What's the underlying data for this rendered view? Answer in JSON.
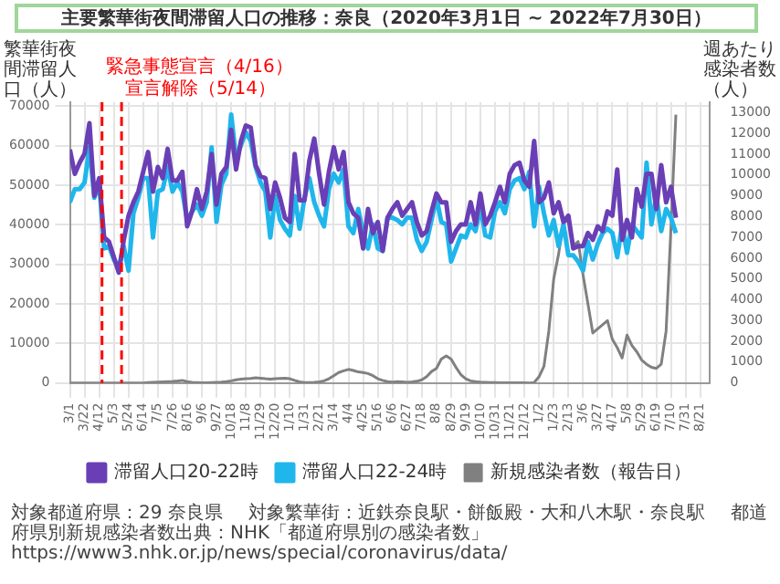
{
  "chart_data": {
    "type": "line",
    "title": "主要繁華街夜間滞留人口の推移：奈良（2020年3月1日 ~ 2022年7月30日）",
    "ylabel": "繁華街夜間滞留人口（人）",
    "y2label": "週あたり感染者数（人）",
    "x": [
      "2020-03-01",
      "2020-03-08",
      "2020-03-15",
      "2020-03-22",
      "2020-03-29",
      "2020-04-05",
      "2020-04-12",
      "2020-04-19",
      "2020-04-26",
      "2020-05-03",
      "2020-05-10",
      "2020-05-17",
      "2020-05-24",
      "2020-05-31",
      "2020-06-07",
      "2020-06-14",
      "2020-06-21",
      "2020-06-28",
      "2020-07-05",
      "2020-07-12",
      "2020-07-19",
      "2020-07-26",
      "2020-08-02",
      "2020-08-09",
      "2020-08-16",
      "2020-08-23",
      "2020-08-30",
      "2020-09-06",
      "2020-09-13",
      "2020-09-20",
      "2020-09-27",
      "2020-10-04",
      "2020-10-11",
      "2020-10-18",
      "2020-10-25",
      "2020-11-01",
      "2020-11-08",
      "2020-11-15",
      "2020-11-22",
      "2020-11-29",
      "2020-12-06",
      "2020-12-13",
      "2020-12-20",
      "2020-12-27",
      "2021-01-03",
      "2021-01-10",
      "2021-01-17",
      "2021-01-24",
      "2021-01-31",
      "2021-02-07",
      "2021-02-14",
      "2021-02-21",
      "2021-02-28",
      "2021-03-07",
      "2021-03-14",
      "2021-03-21",
      "2021-03-28",
      "2021-04-04",
      "2021-04-11",
      "2021-04-18",
      "2021-04-25",
      "2021-05-02",
      "2021-05-09",
      "2021-05-16",
      "2021-05-23",
      "2021-05-30",
      "2021-06-06",
      "2021-06-13",
      "2021-06-20",
      "2021-06-27",
      "2021-07-04",
      "2021-07-11",
      "2021-07-18",
      "2021-07-25",
      "2021-08-01",
      "2021-08-08",
      "2021-08-15",
      "2021-08-22",
      "2021-08-29",
      "2021-09-05",
      "2021-09-12",
      "2021-09-19",
      "2021-09-26",
      "2021-10-03",
      "2021-10-10",
      "2021-10-17",
      "2021-10-24",
      "2021-10-31",
      "2021-11-07",
      "2021-11-14",
      "2021-11-21",
      "2021-11-28",
      "2021-12-05",
      "2021-12-12",
      "2021-12-19",
      "2021-12-26",
      "2022-01-02",
      "2022-01-09",
      "2022-01-16",
      "2022-01-23",
      "2022-01-30",
      "2022-02-06",
      "2022-02-13",
      "2022-02-20",
      "2022-02-27",
      "2022-03-06",
      "2022-03-13",
      "2022-03-20",
      "2022-03-27",
      "2022-04-03",
      "2022-04-10",
      "2022-04-17",
      "2022-04-24",
      "2022-05-01",
      "2022-05-08",
      "2022-05-15",
      "2022-05-22",
      "2022-05-29",
      "2022-06-05",
      "2022-06-12",
      "2022-06-19",
      "2022-06-26",
      "2022-07-03",
      "2022-07-10",
      "2022-07-17"
    ],
    "series": [
      {
        "name": "滞留人口20-22時",
        "color": "#6a3fb5",
        "values": [
          59000,
          52900,
          55700,
          58000,
          65700,
          47300,
          51800,
          36800,
          35700,
          31800,
          27900,
          36000,
          42300,
          45700,
          48400,
          53400,
          58400,
          48400,
          54600,
          51800,
          59200,
          51200,
          51200,
          53400,
          39600,
          43400,
          49000,
          44000,
          48400,
          57900,
          45100,
          52900,
          54600,
          64000,
          54000,
          61200,
          65100,
          64600,
          55100,
          52300,
          51800,
          44000,
          50700,
          46800,
          41800,
          40700,
          57900,
          46200,
          46200,
          56200,
          61800,
          52900,
          45100,
          53400,
          59600,
          54000,
          58400,
          45700,
          42900,
          41800,
          34000,
          44000,
          37900,
          40700,
          33400,
          41800,
          44000,
          45700,
          42300,
          44000,
          45700,
          40700,
          37300,
          38400,
          43400,
          47900,
          45700,
          45700,
          35700,
          38400,
          40100,
          40100,
          45700,
          40100,
          47900,
          40100,
          42300,
          45700,
          49600,
          45700,
          52900,
          55100,
          55700,
          51200,
          49600,
          61200,
          45700,
          46800,
          50700,
          42900,
          45700,
          40700,
          42300,
          34000,
          34600,
          34600,
          37900,
          36200,
          39600,
          38400,
          43400,
          42300,
          54000,
          36200,
          41200,
          36800,
          49000,
          44600,
          52900,
          52900,
          44000,
          55100,
          45700,
          49600,
          41800
        ]
      },
      {
        "name": "滞留人口22-24時",
        "color": "#1fb6ec",
        "values": [
          45700,
          49000,
          49000,
          50700,
          59600,
          46800,
          50700,
          34000,
          34600,
          31200,
          29000,
          34600,
          28400,
          42900,
          46800,
          51800,
          51800,
          36800,
          48400,
          49000,
          54600,
          48400,
          50700,
          48400,
          41200,
          43400,
          45100,
          42300,
          45700,
          59600,
          40700,
          50100,
          52900,
          67900,
          56800,
          60100,
          63400,
          61200,
          54600,
          50700,
          48400,
          36800,
          47300,
          41200,
          39000,
          37300,
          47300,
          39000,
          46800,
          51800,
          45700,
          42300,
          39600,
          49000,
          52900,
          50700,
          54000,
          39600,
          37900,
          44000,
          37900,
          34000,
          40100,
          34000,
          33400,
          41800,
          41800,
          41200,
          40100,
          41800,
          41800,
          36200,
          33400,
          35700,
          41200,
          46800,
          40700,
          40100,
          30700,
          34000,
          37300,
          36800,
          40100,
          38400,
          44600,
          37300,
          36800,
          43400,
          45700,
          42900,
          49000,
          51200,
          51800,
          49000,
          53400,
          39600,
          49600,
          42900,
          37300,
          41200,
          34600,
          40100,
          32300,
          32300,
          30700,
          28400,
          35700,
          31200,
          35100,
          37900,
          39000,
          37900,
          31800,
          40100,
          32900,
          40100,
          38400,
          36800,
          55700,
          40100,
          47300,
          38400,
          44000,
          41800,
          37900
        ]
      },
      {
        "name": "新規感染者数（報告日）",
        "color": "#808080",
        "axis": "y2",
        "values": [
          0,
          0,
          0,
          0,
          0,
          0,
          0,
          0,
          0,
          0,
          0,
          0,
          0,
          0,
          0,
          0,
          20,
          30,
          40,
          50,
          60,
          70,
          90,
          120,
          60,
          30,
          20,
          10,
          10,
          20,
          30,
          40,
          60,
          100,
          150,
          180,
          200,
          220,
          250,
          230,
          200,
          180,
          200,
          220,
          230,
          200,
          120,
          50,
          20,
          20,
          30,
          50,
          100,
          200,
          350,
          500,
          580,
          650,
          600,
          530,
          500,
          450,
          350,
          200,
          120,
          60,
          40,
          60,
          50,
          30,
          50,
          80,
          150,
          300,
          550,
          700,
          1150,
          1300,
          1150,
          750,
          400,
          200,
          100,
          60,
          40,
          30,
          20,
          20,
          10,
          10,
          10,
          10,
          10,
          10,
          0,
          20,
          300,
          800,
          2500,
          5000,
          6200,
          7700,
          7800,
          6600,
          6800,
          5200,
          3800,
          2400,
          2600,
          2800,
          3000,
          2100,
          1700,
          1200,
          2300,
          1800,
          1500,
          1100,
          900,
          750,
          700,
          900,
          2500,
          7500,
          12900
        ]
      }
    ],
    "xlim": [
      "2020-03-01",
      "2022-09-04"
    ],
    "xticks": [
      {
        "value": "2020-03-01",
        "label": "3/1"
      },
      {
        "value": "2020-03-22",
        "label": "3/22"
      },
      {
        "value": "2020-04-12",
        "label": "4/12"
      },
      {
        "value": "2020-05-03",
        "label": "5/3"
      },
      {
        "value": "2020-05-24",
        "label": "5/24"
      },
      {
        "value": "2020-06-14",
        "label": "6/14"
      },
      {
        "value": "2020-07-05",
        "label": "7/5"
      },
      {
        "value": "2020-07-26",
        "label": "7/26"
      },
      {
        "value": "2020-08-16",
        "label": "8/16"
      },
      {
        "value": "2020-09-06",
        "label": "9/6"
      },
      {
        "value": "2020-09-27",
        "label": "9/27"
      },
      {
        "value": "2020-10-18",
        "label": "10/18"
      },
      {
        "value": "2020-11-08",
        "label": "11/8"
      },
      {
        "value": "2020-11-29",
        "label": "11/29"
      },
      {
        "value": "2020-12-20",
        "label": "12/20"
      },
      {
        "value": "2021-01-10",
        "label": "1/10"
      },
      {
        "value": "2021-01-31",
        "label": "1/31"
      },
      {
        "value": "2021-02-21",
        "label": "2/21"
      },
      {
        "value": "2021-03-14",
        "label": "3/14"
      },
      {
        "value": "2021-04-04",
        "label": "4/4"
      },
      {
        "value": "2021-04-25",
        "label": "4/25"
      },
      {
        "value": "2021-05-16",
        "label": "5/16"
      },
      {
        "value": "2021-06-06",
        "label": "6/6"
      },
      {
        "value": "2021-06-27",
        "label": "6/27"
      },
      {
        "value": "2021-07-18",
        "label": "7/18"
      },
      {
        "value": "2021-08-08",
        "label": "8/8"
      },
      {
        "value": "2021-08-29",
        "label": "8/29"
      },
      {
        "value": "2021-09-19",
        "label": "9/19"
      },
      {
        "value": "2021-10-10",
        "label": "10/10"
      },
      {
        "value": "2021-10-31",
        "label": "10/31"
      },
      {
        "value": "2021-11-21",
        "label": "11/21"
      },
      {
        "value": "2021-12-12",
        "label": "12/12"
      },
      {
        "value": "2022-01-02",
        "label": "1/2"
      },
      {
        "value": "2022-01-23",
        "label": "1/23"
      },
      {
        "value": "2022-02-13",
        "label": "2/13"
      },
      {
        "value": "2022-03-06",
        "label": "3/6"
      },
      {
        "value": "2022-03-27",
        "label": "3/27"
      },
      {
        "value": "2022-04-17",
        "label": "4/17"
      },
      {
        "value": "2022-05-08",
        "label": "5/8"
      },
      {
        "value": "2022-05-29",
        "label": "5/29"
      },
      {
        "value": "2022-06-19",
        "label": "6/19"
      },
      {
        "value": "2022-07-10",
        "label": "7/10"
      },
      {
        "value": "2022-07-31",
        "label": "7/31"
      },
      {
        "value": "2022-08-21",
        "label": "8/21"
      }
    ],
    "ylim": [
      0,
      71000
    ],
    "yticks": [
      0,
      10000,
      20000,
      30000,
      40000,
      50000,
      60000,
      70000
    ],
    "y2lim": [
      0,
      13500
    ],
    "y2ticks": [
      0,
      1000,
      2000,
      3000,
      4000,
      5000,
      6000,
      7000,
      8000,
      9000,
      10000,
      11000,
      12000,
      13000
    ],
    "ref_lines": [
      {
        "axis": "x",
        "value": "2020-04-16",
        "label": "緊急事態宣言（4/16）",
        "color": "#ff0000",
        "line_style": "dashed"
      },
      {
        "axis": "x",
        "value": "2020-05-14",
        "label": "宣言解除（5/14）",
        "color": "#ff0000",
        "line_style": "dashed"
      }
    ],
    "annotations": [
      "対象都道府県：29 奈良県",
      "対象繁華街：近鉄奈良駅・餅飯殿・大和八木駅・奈良駅",
      "都道府県別新規感染者数出典：NHK「都道府県別の感染者数」https://www3.nhk.or.jp/news/special/coronavirus/data/"
    ],
    "grid": true,
    "legend": "bottom",
    "marker": "none",
    "line_style": "solid"
  }
}
